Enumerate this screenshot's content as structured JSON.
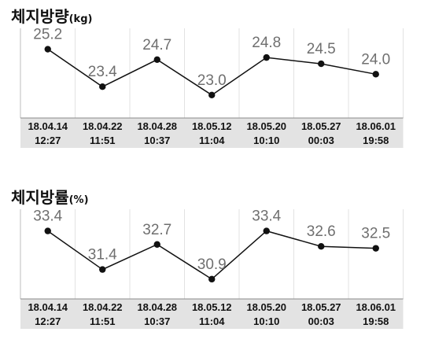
{
  "charts": [
    {
      "title": "체지방량",
      "unit": "(kg)",
      "chart_data": {
        "type": "line",
        "title": "체지방량(kg)",
        "categories": [
          [
            "18.04.14",
            "12:27"
          ],
          [
            "18.04.22",
            "11:51"
          ],
          [
            "18.04.28",
            "10:37"
          ],
          [
            "18.05.12",
            "11:04"
          ],
          [
            "18.05.20",
            "10:10"
          ],
          [
            "18.05.27",
            "00:03"
          ],
          [
            "18.06.01",
            "19:58"
          ]
        ],
        "values": [
          25.2,
          23.4,
          24.7,
          23.0,
          24.8,
          24.5,
          24.0
        ],
        "labels": [
          "25.2",
          "23.4",
          "24.7",
          "23.0",
          "24.8",
          "24.5",
          "24.0"
        ],
        "ylim": [
          22.2,
          25.9
        ],
        "grid": true,
        "line_color": "#111111",
        "label_color": "#6f6f6f",
        "axis_band_color": "#e3e3e3"
      }
    },
    {
      "title": "체지방률",
      "unit": "(%)",
      "chart_data": {
        "type": "line",
        "title": "체지방률(%)",
        "categories": [
          [
            "18.04.14",
            "12:27"
          ],
          [
            "18.04.22",
            "11:51"
          ],
          [
            "18.04.28",
            "10:37"
          ],
          [
            "18.05.12",
            "11:04"
          ],
          [
            "18.05.20",
            "10:10"
          ],
          [
            "18.05.27",
            "00:03"
          ],
          [
            "18.06.01",
            "19:58"
          ]
        ],
        "values": [
          33.4,
          31.4,
          32.7,
          30.9,
          33.4,
          32.6,
          32.5
        ],
        "labels": [
          "33.4",
          "31.4",
          "32.7",
          "30.9",
          "33.4",
          "32.6",
          "32.5"
        ],
        "ylim": [
          30.2,
          34.2
        ],
        "grid": true,
        "line_color": "#111111",
        "label_color": "#6f6f6f",
        "axis_band_color": "#e3e3e3"
      }
    }
  ]
}
